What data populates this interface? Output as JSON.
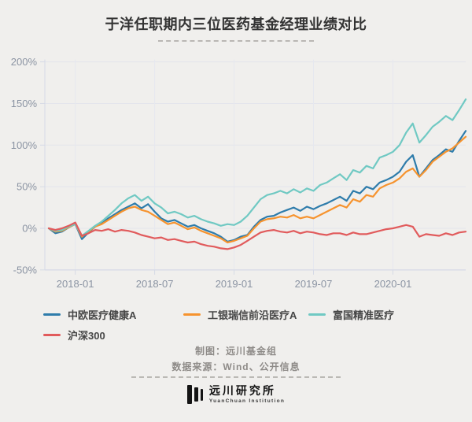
{
  "title": "于洋任职期内三位医药基金经理业绩对比",
  "chart_data": {
    "type": "line",
    "x_unit": "months since 2017-11",
    "x": [
      0,
      0.5,
      1,
      1.5,
      2,
      2.5,
      3,
      3.5,
      4,
      4.5,
      5,
      5.5,
      6,
      6.5,
      7,
      7.5,
      8,
      8.5,
      9,
      9.5,
      10,
      10.5,
      11,
      11.5,
      12,
      12.5,
      13,
      13.5,
      14,
      14.5,
      15,
      15.5,
      16,
      16.5,
      17,
      17.5,
      18,
      18.5,
      19,
      19.5,
      20,
      20.5,
      21,
      21.5,
      22,
      22.5,
      23,
      23.5,
      24,
      24.5,
      25,
      25.5,
      26,
      26.5,
      27,
      27.5,
      28,
      28.5,
      29,
      29.5,
      30,
      30.5,
      31,
      31.5
    ],
    "series": [
      {
        "name": "中欧医疗健康A",
        "color": "#2e7cab",
        "values": [
          0,
          -6,
          -4,
          1,
          5,
          -13,
          -5,
          2,
          6,
          12,
          17,
          22,
          26,
          30,
          24,
          29,
          20,
          12,
          8,
          10,
          6,
          2,
          4,
          0,
          -3,
          -6,
          -10,
          -16,
          -14,
          -10,
          -8,
          2,
          10,
          14,
          15,
          19,
          22,
          25,
          21,
          26,
          23,
          27,
          30,
          34,
          38,
          33,
          45,
          42,
          50,
          47,
          55,
          58,
          62,
          68,
          80,
          88,
          62,
          72,
          82,
          88,
          95,
          92,
          105,
          117
        ]
      },
      {
        "name": "工银瑞信前沿医疗A",
        "color": "#f6932e",
        "values": [
          0,
          -4,
          -3,
          1,
          5,
          -10,
          -4,
          2,
          5,
          10,
          15,
          20,
          24,
          26,
          22,
          20,
          15,
          10,
          5,
          7,
          3,
          -1,
          1,
          -3,
          -6,
          -9,
          -12,
          -17,
          -15,
          -12,
          -9,
          0,
          8,
          11,
          12,
          14,
          13,
          16,
          12,
          14,
          12,
          16,
          20,
          24,
          28,
          25,
          35,
          32,
          40,
          38,
          48,
          52,
          55,
          60,
          68,
          72,
          62,
          70,
          80,
          86,
          92,
          96,
          103,
          110
        ]
      },
      {
        "name": "富国精准医疗",
        "color": "#70c9c3",
        "values": [
          0,
          -3,
          -2,
          2,
          5,
          -9,
          -3,
          3,
          8,
          15,
          22,
          30,
          36,
          40,
          33,
          38,
          30,
          25,
          18,
          20,
          17,
          13,
          15,
          11,
          8,
          6,
          3,
          5,
          4,
          8,
          15,
          25,
          35,
          40,
          42,
          45,
          42,
          47,
          43,
          48,
          45,
          52,
          55,
          60,
          65,
          58,
          70,
          67,
          75,
          72,
          85,
          88,
          92,
          100,
          115,
          126,
          103,
          112,
          122,
          128,
          135,
          130,
          142,
          155
        ]
      },
      {
        "name": "沪深300",
        "color": "#e15b5c",
        "values": [
          0,
          -2,
          0,
          3,
          7,
          -9,
          -6,
          -2,
          -3,
          -1,
          -4,
          -2,
          -3,
          -5,
          -8,
          -10,
          -12,
          -11,
          -14,
          -13,
          -15,
          -17,
          -16,
          -19,
          -21,
          -22,
          -24,
          -25,
          -23,
          -20,
          -15,
          -10,
          -5,
          -3,
          -2,
          -4,
          -5,
          -3,
          -6,
          -4,
          -5,
          -7,
          -8,
          -6,
          -6,
          -8,
          -5,
          -7,
          -7,
          -5,
          -3,
          -1,
          0,
          2,
          4,
          2,
          -10,
          -7,
          -8,
          -9,
          -6,
          -8,
          -5,
          -4
        ]
      }
    ],
    "y_ticks": [
      200,
      150,
      100,
      50,
      0,
      -50
    ],
    "y_tick_suffix": "%",
    "ylim": [
      -50,
      200
    ],
    "x_ticks": [
      {
        "label": "2018-01",
        "t": 2
      },
      {
        "label": "2018-07",
        "t": 8
      },
      {
        "label": "2019-01",
        "t": 14
      },
      {
        "label": "2019-07",
        "t": 20
      },
      {
        "label": "2020-01",
        "t": 26
      }
    ],
    "grid": true,
    "legend_position": "bottom"
  },
  "footer": {
    "credit": "制图：远川基金组",
    "source": "数据来源：Wind、公开信息"
  },
  "logo": {
    "name_cn": "远川研究所",
    "name_en": "YuanChuan Institution"
  },
  "colors": {
    "background": "#f0efed",
    "title_text": "#333333",
    "axis_text": "#8b94a3",
    "grid_line": "#e3e5ec",
    "grid_line_vertical": "#e6e8ef",
    "axis_line": "#d6dae6",
    "legend_text": "#454545",
    "credit_text": "#8e8b88"
  }
}
